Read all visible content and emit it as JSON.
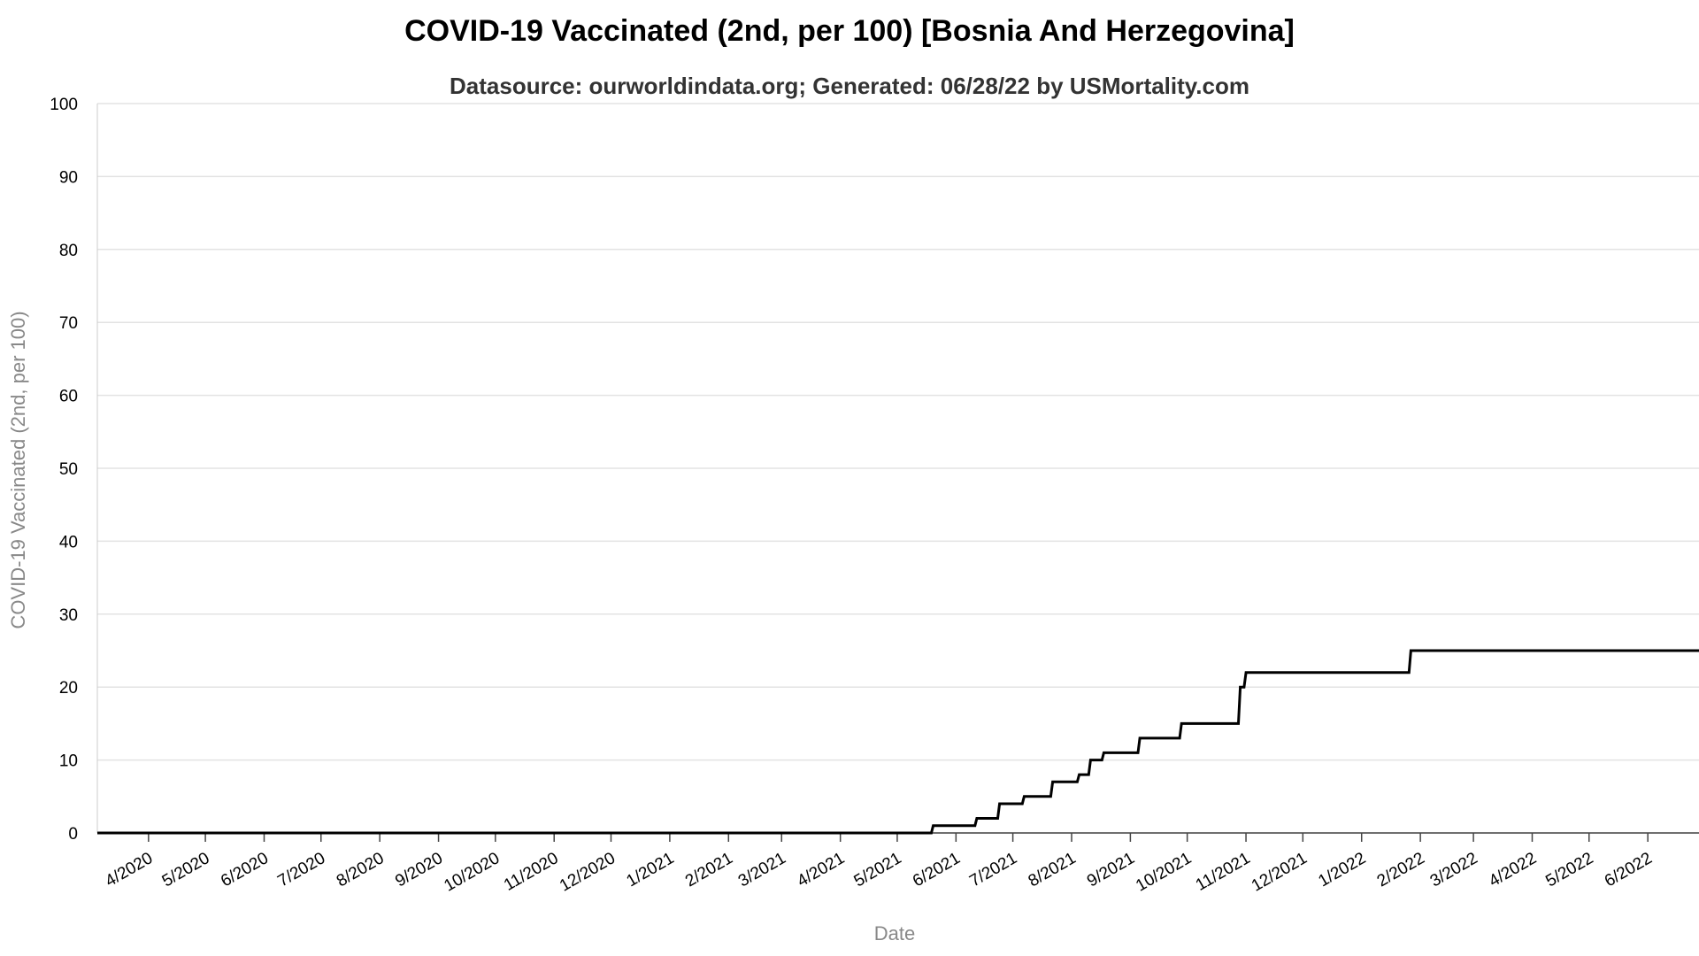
{
  "chart_data": {
    "type": "line",
    "title": "COVID-19 Vaccinated (2nd, per 100) [Bosnia And Herzegovina]",
    "subtitle": "Datasource: ourworldindata.org; Generated: 06/28/22 by USMortality.com",
    "xlabel": "Date",
    "ylabel": "COVID-19 Vaccinated (2nd, per 100)",
    "ylim": [
      0,
      100
    ],
    "yticks": [
      "0",
      "10",
      "20",
      "30",
      "40",
      "50",
      "60",
      "70",
      "80",
      "90",
      "100"
    ],
    "xlim": [
      "2020-03-05",
      "2022-06-28"
    ],
    "xticks": [
      {
        "label": "4/2020",
        "date": "2020-04-01"
      },
      {
        "label": "5/2020",
        "date": "2020-05-01"
      },
      {
        "label": "6/2020",
        "date": "2020-06-01"
      },
      {
        "label": "7/2020",
        "date": "2020-07-01"
      },
      {
        "label": "8/2020",
        "date": "2020-08-01"
      },
      {
        "label": "9/2020",
        "date": "2020-09-01"
      },
      {
        "label": "10/2020",
        "date": "2020-10-01"
      },
      {
        "label": "11/2020",
        "date": "2020-11-01"
      },
      {
        "label": "12/2020",
        "date": "2020-12-01"
      },
      {
        "label": "1/2021",
        "date": "2021-01-01"
      },
      {
        "label": "2/2021",
        "date": "2021-02-01"
      },
      {
        "label": "3/2021",
        "date": "2021-03-01"
      },
      {
        "label": "4/2021",
        "date": "2021-04-01"
      },
      {
        "label": "5/2021",
        "date": "2021-05-01"
      },
      {
        "label": "6/2021",
        "date": "2021-06-01"
      },
      {
        "label": "7/2021",
        "date": "2021-07-01"
      },
      {
        "label": "8/2021",
        "date": "2021-08-01"
      },
      {
        "label": "9/2021",
        "date": "2021-09-01"
      },
      {
        "label": "10/2021",
        "date": "2021-10-01"
      },
      {
        "label": "11/2021",
        "date": "2021-11-01"
      },
      {
        "label": "12/2021",
        "date": "2021-12-01"
      },
      {
        "label": "1/2022",
        "date": "2022-01-01"
      },
      {
        "label": "2/2022",
        "date": "2022-02-01"
      },
      {
        "label": "3/2022",
        "date": "2022-03-01"
      },
      {
        "label": "4/2022",
        "date": "2022-04-01"
      },
      {
        "label": "5/2022",
        "date": "2022-05-01"
      },
      {
        "label": "6/2022",
        "date": "2022-06-01"
      }
    ],
    "grid": true,
    "line_color": "#000000",
    "series": [
      {
        "x": [
          "2020-03-05",
          "2021-05-19",
          "2021-05-20",
          "2021-06-11",
          "2021-06-12",
          "2021-06-23",
          "2021-06-24",
          "2021-07-06",
          "2021-07-07",
          "2021-07-21",
          "2021-07-22",
          "2021-08-04",
          "2021-08-05",
          "2021-08-10",
          "2021-08-11",
          "2021-08-17",
          "2021-08-18",
          "2021-09-05",
          "2021-09-06",
          "2021-09-27",
          "2021-09-28",
          "2021-10-28",
          "2021-10-29",
          "2021-10-31",
          "2021-11-01",
          "2022-01-26",
          "2022-01-27",
          "2022-06-28"
        ],
        "y": [
          0,
          0,
          1,
          1,
          2,
          2,
          4,
          4,
          5,
          5,
          7,
          7,
          8,
          8,
          10,
          10,
          11,
          11,
          13,
          13,
          15,
          15,
          20,
          20,
          22,
          22,
          25,
          25
        ]
      }
    ]
  }
}
